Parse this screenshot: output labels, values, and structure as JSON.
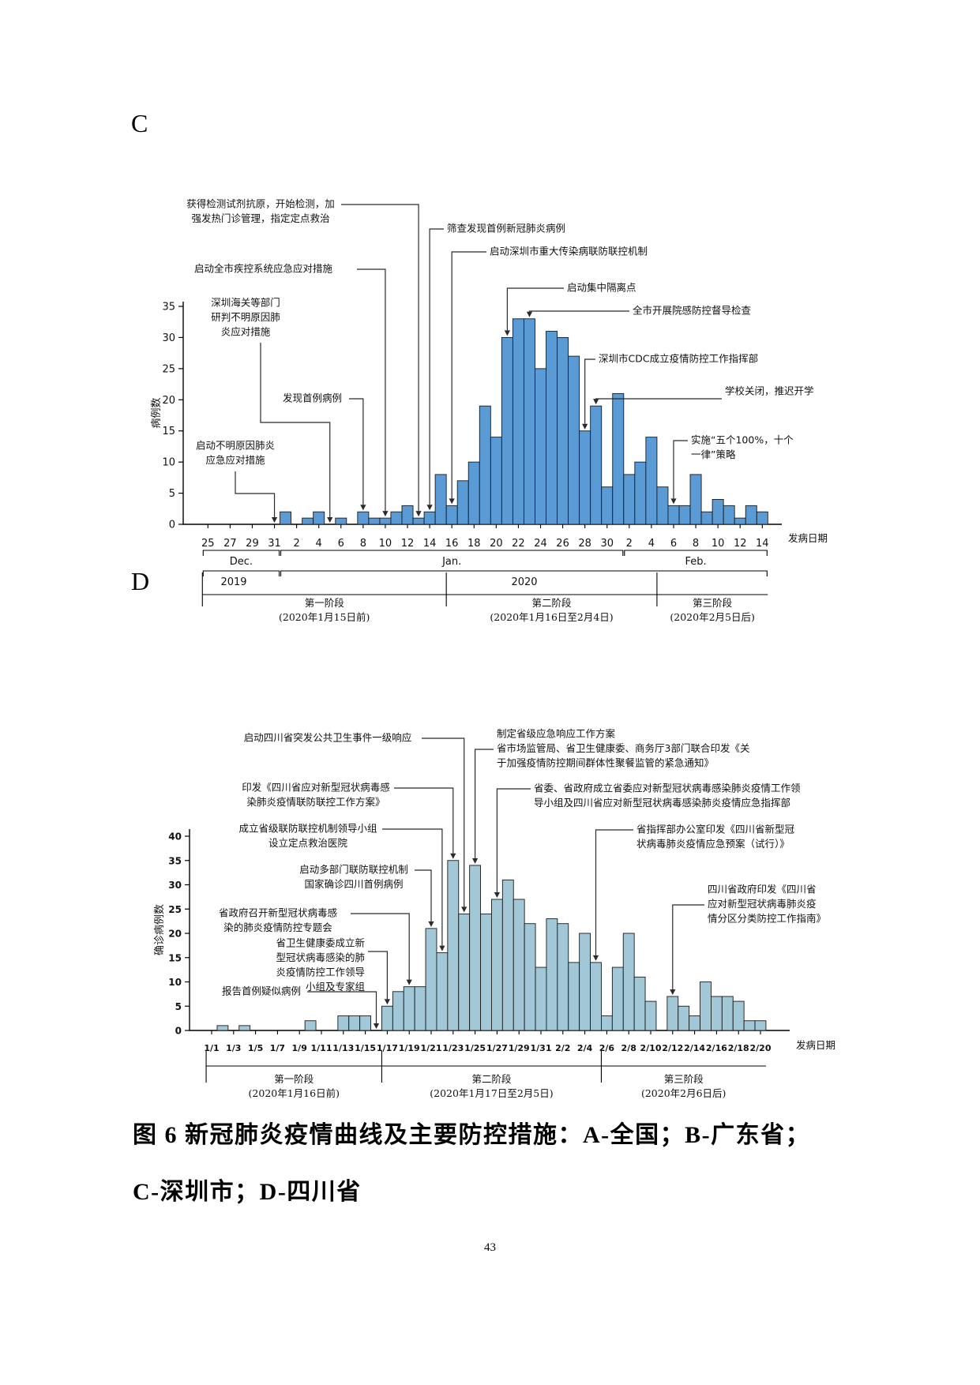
{
  "page": {
    "section_label_c": "C",
    "section_label_d": "D",
    "caption_line1": "图 6 新冠肺炎疫情曲线及主要防控措施：A-全国；B-广东省；",
    "caption_line2": "C-深圳市；D-四川省",
    "page_number": "43"
  },
  "chart_data": [
    {
      "id": "c",
      "type": "bar",
      "region": "深圳市",
      "ylabel": "病例数",
      "xlabel": "发病日期",
      "ylim": [
        0,
        35
      ],
      "ytick_step": 5,
      "bar_color": "#5B9BD5",
      "bar_border": "#1a1a1a",
      "values": [
        0,
        0,
        0,
        0,
        0,
        0,
        0,
        2,
        0,
        1,
        2,
        0,
        1,
        0,
        2,
        1,
        1,
        2,
        3,
        1,
        2,
        8,
        3,
        7,
        10,
        19,
        14,
        30,
        33,
        33,
        25,
        31,
        30,
        27,
        15,
        19,
        6,
        21,
        8,
        10,
        14,
        6,
        3,
        3,
        8,
        2,
        4,
        3,
        1,
        3,
        2
      ],
      "xtick_labels": [
        "25",
        "27",
        "29",
        "31",
        "2",
        "4",
        "6",
        "8",
        "10",
        "12",
        "14",
        "16",
        "18",
        "20",
        "22",
        "24",
        "26",
        "28",
        "30",
        "2",
        "4",
        "6",
        "8",
        "10",
        "12",
        "14"
      ],
      "months": [
        {
          "label": "Dec.",
          "from": 0,
          "to": 6
        },
        {
          "label": "Jan.",
          "from": 7,
          "to": 37
        },
        {
          "label": "Feb.",
          "from": 38,
          "to": 50
        }
      ],
      "years": [
        {
          "label": "2019",
          "from": 0,
          "to": 6
        },
        {
          "label": "2020",
          "from": 7,
          "to": 50
        }
      ],
      "stages": [
        {
          "name": "第一阶段",
          "note": "(2020年1月15日前)",
          "from": 0,
          "to": 21
        },
        {
          "name": "第二阶段",
          "note": "(2020年1月16日至2月4日)",
          "from": 22,
          "to": 40
        },
        {
          "name": "第三阶段",
          "note": "(2020年2月5日后)",
          "from": 41,
          "to": 50
        }
      ],
      "annotations": [
        {
          "id": "c1",
          "lines": [
            "获得检测试剂抗原，开始检测，加",
            "强发热门诊管理，指定定点救治"
          ],
          "target_index": 19
        },
        {
          "id": "c2",
          "lines": [
            "筛查发现首例新冠肺炎病例"
          ],
          "target_index": 20
        },
        {
          "id": "c3",
          "lines": [
            "启动深圳市重大传染病联防联控机制"
          ],
          "target_index": 22
        },
        {
          "id": "c4",
          "lines": [
            "启动全市疾控系统应急应对措施"
          ],
          "target_index": 16
        },
        {
          "id": "c5",
          "lines": [
            "深圳海关等部门",
            "研判不明原因肺",
            "炎应对措施"
          ],
          "target_index": 11
        },
        {
          "id": "c6",
          "lines": [
            "发现首例病例"
          ],
          "target_index": 14
        },
        {
          "id": "c7",
          "lines": [
            "启动不明原因肺炎",
            "应急应对措施"
          ],
          "target_index": 6
        },
        {
          "id": "c8",
          "lines": [
            "启动集中隔离点"
          ],
          "target_index": 27
        },
        {
          "id": "c9",
          "lines": [
            "全市开展院感防控督导检查"
          ],
          "target_index": 29
        },
        {
          "id": "c10",
          "lines": [
            "深圳市CDC成立疫情防控工作指挥部"
          ],
          "target_index": 34
        },
        {
          "id": "c11",
          "lines": [
            "学校关闭，推迟开学"
          ],
          "target_index": 35
        },
        {
          "id": "c12",
          "lines": [
            "实施“五个100%，十个",
            "一律”策略"
          ],
          "target_index": 42
        }
      ]
    },
    {
      "id": "d",
      "type": "bar",
      "region": "四川省",
      "ylabel": "确诊病例数",
      "xlabel": "发病日期",
      "ylim": [
        0,
        40
      ],
      "ytick_step": 5,
      "bar_color": "#A2C8D8",
      "bar_border": "#1a1a1a",
      "values": [
        0,
        1,
        0,
        1,
        0,
        0,
        0,
        0,
        0,
        2,
        0,
        0,
        3,
        3,
        3,
        0,
        5,
        8,
        9,
        9,
        21,
        16,
        35,
        24,
        34,
        24,
        27,
        31,
        27,
        22,
        13,
        23,
        22,
        14,
        20,
        14,
        3,
        13,
        20,
        11,
        6,
        0,
        7,
        5,
        3,
        10,
        7,
        7,
        6,
        2,
        2
      ],
      "xtick_labels": [
        "1/1",
        "1/3",
        "1/5",
        "1/7",
        "1/9",
        "1/11",
        "1/13",
        "1/15",
        "1/17",
        "1/19",
        "1/21",
        "1/23",
        "1/25",
        "1/27",
        "1/29",
        "1/31",
        "2/2",
        "2/4",
        "2/6",
        "2/8",
        "2/10",
        "2/12",
        "2/14",
        "2/16",
        "2/18",
        "2/20"
      ],
      "months": [],
      "years": [],
      "stages": [
        {
          "name": "第一阶段",
          "note": "(2020年1月16日前)",
          "from": 0,
          "to": 15
        },
        {
          "name": "第二阶段",
          "note": "(2020年1月17日至2月5日)",
          "from": 16,
          "to": 35
        },
        {
          "name": "第三阶段",
          "note": "(2020年2月6日后)",
          "from": 36,
          "to": 50
        }
      ],
      "annotations": [
        {
          "id": "a1",
          "lines": [
            "启动四川省突发公共卫生事件一级响应"
          ],
          "target_index": 23
        },
        {
          "id": "a2",
          "lines": [
            "印发《四川省应对新型冠状病毒感",
            "染肺炎疫情联防联控工作方案》"
          ],
          "target_index": 22
        },
        {
          "id": "a3",
          "lines": [
            "成立省级联防联控机制领导小组",
            "设立定点救治医院"
          ],
          "target_index": 21
        },
        {
          "id": "a4",
          "lines": [
            "启动多部门联防联控机制",
            "国家确诊四川首例病例"
          ],
          "target_index": 20
        },
        {
          "id": "a5",
          "lines": [
            "省政府召开新型冠状病毒感",
            "染的肺炎疫情防控专题会"
          ],
          "target_index": 18
        },
        {
          "id": "a6",
          "lines": [
            "省卫生健康委成立新",
            "型冠状病毒感染的肺",
            "炎疫情防控工作领导",
            "小组及专家组"
          ],
          "target_index": 16
        },
        {
          "id": "a7",
          "lines": [
            "报告首例疑似病例"
          ],
          "target_index": 15
        },
        {
          "id": "a8",
          "lines": [
            "制定省级应急响应工作方案",
            "省市场监管局、省卫生健康委、商务厅3部门联合印发《关",
            "于加强疫情防控期间群体性聚餐监管的紧急通知》"
          ],
          "target_index": 24
        },
        {
          "id": "a9",
          "lines": [
            "省委、省政府成立省委应对新型冠状病毒感染肺炎疫情工作领",
            "导小组及四川省应对新型冠状病毒感染肺炎疫情应急指挥部"
          ],
          "target_index": 26
        },
        {
          "id": "a10",
          "lines": [
            "省指挥部办公室印发《四川省新型冠",
            "状病毒肺炎疫情应急预案（试行）》"
          ],
          "target_index": 35
        },
        {
          "id": "a11",
          "lines": [
            "四川省政府印发《四川省",
            "应对新型冠状病毒肺炎疫",
            "情分区分类防控工作指南》"
          ],
          "target_index": 42
        }
      ]
    }
  ]
}
